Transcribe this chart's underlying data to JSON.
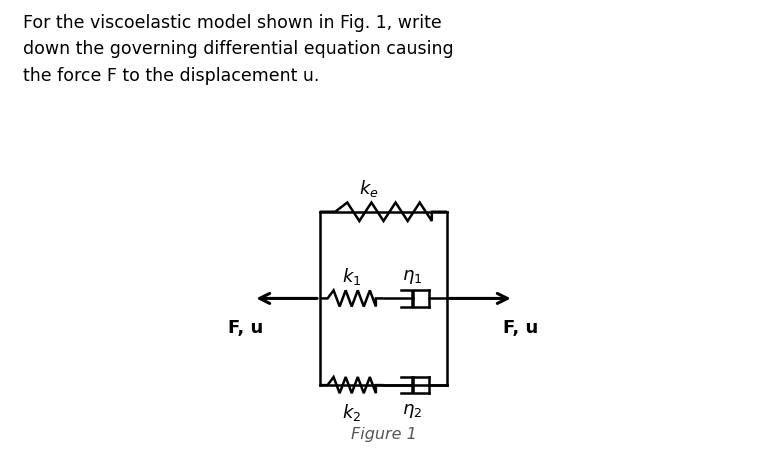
{
  "title_text": "For the viscoelastic model shown in Fig. 1, write\ndown the governing differential equation causing\nthe force F to the displacement u.",
  "figure_caption": "Figure 1",
  "label_ke": "$k_e$",
  "label_k1": "$k_1$",
  "label_k2": "$k_2$",
  "label_eta1": "$\\eta_1$",
  "label_eta2": "$\\eta_2$",
  "label_Fu_left": "F, u",
  "label_Fu_right": "F, u",
  "bg_color": "#ffffff",
  "line_color": "#000000",
  "text_color": "#000000",
  "figsize": [
    7.67,
    4.66
  ],
  "dpi": 100
}
